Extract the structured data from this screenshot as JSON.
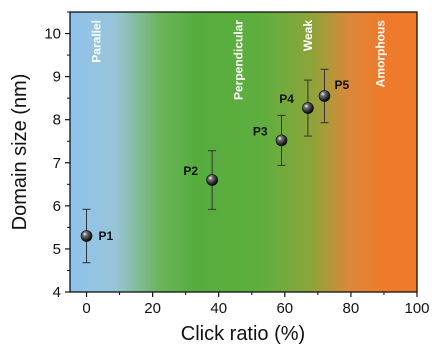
{
  "chart_data": {
    "type": "scatter",
    "xlabel": "Click ratio (%)",
    "ylabel": "Domain size (nm)",
    "xlim": [
      -5,
      100
    ],
    "ylim": [
      4,
      10.5
    ],
    "xticks": [
      "0",
      "20",
      "40",
      "60",
      "80",
      "100"
    ],
    "yticks": [
      "4",
      "5",
      "6",
      "7",
      "8",
      "9",
      "10"
    ],
    "grid": false,
    "points": [
      {
        "label": "P1",
        "x": 0,
        "y": 5.3,
        "err": 0.62
      },
      {
        "label": "P2",
        "x": 38,
        "y": 6.6,
        "err": 0.68
      },
      {
        "label": "P3",
        "x": 59,
        "y": 7.52,
        "err": 0.58
      },
      {
        "label": "P4",
        "x": 67,
        "y": 8.27,
        "err": 0.65
      },
      {
        "label": "P5",
        "x": 72,
        "y": 8.55,
        "err": 0.62
      }
    ],
    "regions": [
      {
        "label": "Parallel",
        "x": 3,
        "color": "#8fc3ee"
      },
      {
        "label": "Perpendicular",
        "x": 46,
        "color": "#5db041"
      },
      {
        "label": "Weak",
        "x": 67,
        "color": "#8fa43a"
      },
      {
        "label": "Amorphous",
        "x": 89,
        "color": "#f07a2b"
      }
    ]
  }
}
